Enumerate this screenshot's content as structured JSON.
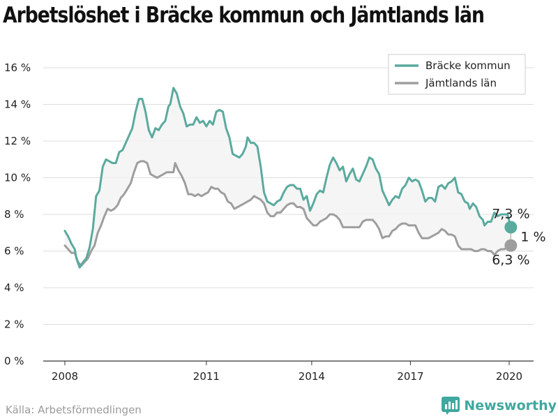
{
  "title": "Arbetslöshet i Bräcke kommun och Jämtlands län",
  "source": "Källa: Arbetsförmedlingen",
  "brand": {
    "name": "Newsworthy",
    "icon": "bar-chart-logo-icon",
    "color": "#3fa89f"
  },
  "chart_data": {
    "type": "line",
    "title": "Arbetslöshet i Bräcke kommun och Jämtlands län",
    "xlabel": "",
    "ylabel": "",
    "xlim": [
      2007.5,
      2020.75
    ],
    "ylim": [
      0,
      17
    ],
    "y_ticks": [
      0,
      2,
      4,
      6,
      8,
      10,
      12,
      14,
      16
    ],
    "y_tick_labels": [
      "0 %",
      "2 %",
      "4 %",
      "6 %",
      "8 %",
      "10 %",
      "12 %",
      "14 %",
      "16 %"
    ],
    "x_ticks": [
      2008,
      2011,
      2014,
      2017,
      2020
    ],
    "x_tick_labels": [
      "2008",
      "2011",
      "2014",
      "2017",
      "2020"
    ],
    "grid": "horizontal",
    "legend_position": "top-right",
    "series": [
      {
        "name": "Bräcke kommun",
        "color": "#5aaa9e",
        "points": [
          [
            2008.0,
            7.1
          ],
          [
            2008.1,
            6.8
          ],
          [
            2008.2,
            6.4
          ],
          [
            2008.3,
            6.1
          ],
          [
            2008.35,
            5.6
          ],
          [
            2008.45,
            5.1
          ],
          [
            2008.55,
            5.4
          ],
          [
            2008.65,
            5.6
          ],
          [
            2008.75,
            6.2
          ],
          [
            2008.85,
            7.2
          ],
          [
            2008.95,
            9.0
          ],
          [
            2009.05,
            9.3
          ],
          [
            2009.15,
            10.6
          ],
          [
            2009.25,
            11.0
          ],
          [
            2009.35,
            10.9
          ],
          [
            2009.45,
            10.8
          ],
          [
            2009.55,
            10.8
          ],
          [
            2009.65,
            11.4
          ],
          [
            2009.75,
            11.5
          ],
          [
            2009.85,
            11.9
          ],
          [
            2009.95,
            12.3
          ],
          [
            2010.05,
            12.7
          ],
          [
            2010.15,
            13.6
          ],
          [
            2010.25,
            14.3
          ],
          [
            2010.35,
            14.3
          ],
          [
            2010.45,
            13.6
          ],
          [
            2010.55,
            12.6
          ],
          [
            2010.65,
            12.2
          ],
          [
            2010.75,
            12.7
          ],
          [
            2010.85,
            12.6
          ],
          [
            2010.95,
            12.9
          ],
          [
            2011.05,
            13.1
          ],
          [
            2011.15,
            13.9
          ],
          [
            2011.2,
            14.0
          ],
          [
            2011.3,
            14.9
          ],
          [
            2011.4,
            14.6
          ],
          [
            2011.5,
            13.9
          ],
          [
            2011.6,
            13.5
          ],
          [
            2011.7,
            12.8
          ],
          [
            2011.8,
            12.9
          ],
          [
            2011.9,
            12.9
          ],
          [
            2012.0,
            13.3
          ],
          [
            2012.1,
            13.0
          ],
          [
            2012.2,
            13.1
          ],
          [
            2012.3,
            12.8
          ],
          [
            2012.4,
            13.1
          ],
          [
            2012.5,
            12.9
          ],
          [
            2012.6,
            13.6
          ],
          [
            2012.7,
            13.7
          ],
          [
            2012.8,
            13.6
          ],
          [
            2012.9,
            12.7
          ],
          [
            2013.0,
            12.2
          ],
          [
            2013.1,
            11.3
          ],
          [
            2013.2,
            11.2
          ],
          [
            2013.3,
            11.1
          ],
          [
            2013.4,
            11.3
          ],
          [
            2013.5,
            11.7
          ],
          [
            2013.55,
            12.2
          ],
          [
            2013.65,
            11.9
          ],
          [
            2013.75,
            11.9
          ],
          [
            2013.85,
            11.7
          ],
          [
            2013.95,
            10.6
          ],
          [
            2014.05,
            9.2
          ],
          [
            2014.15,
            8.7
          ],
          [
            2014.25,
            8.6
          ],
          [
            2014.35,
            8.5
          ],
          [
            2014.45,
            8.7
          ],
          [
            2014.55,
            8.8
          ],
          [
            2014.65,
            9.2
          ],
          [
            2014.75,
            9.5
          ],
          [
            2014.85,
            9.6
          ],
          [
            2014.95,
            9.6
          ],
          [
            2015.05,
            9.4
          ],
          [
            2015.15,
            9.4
          ],
          [
            2015.25,
            8.8
          ],
          [
            2015.35,
            9.0
          ],
          [
            2015.45,
            8.2
          ],
          [
            2015.55,
            8.6
          ],
          [
            2015.65,
            9.1
          ],
          [
            2015.75,
            9.3
          ],
          [
            2015.85,
            9.2
          ],
          [
            2015.95,
            10.0
          ],
          [
            2016.05,
            10.7
          ],
          [
            2016.15,
            11.1
          ],
          [
            2016.25,
            10.8
          ],
          [
            2016.35,
            10.4
          ],
          [
            2016.45,
            10.6
          ],
          [
            2016.55,
            9.8
          ],
          [
            2016.65,
            10.2
          ],
          [
            2016.75,
            10.5
          ],
          [
            2016.85,
            9.9
          ],
          [
            2016.95,
            9.8
          ],
          [
            2017.05,
            10.2
          ],
          [
            2017.15,
            10.6
          ],
          [
            2017.25,
            11.1
          ],
          [
            2017.35,
            11.0
          ],
          [
            2017.45,
            10.5
          ],
          [
            2017.55,
            10.2
          ],
          [
            2017.65,
            9.3
          ],
          [
            2017.75,
            8.9
          ],
          [
            2017.85,
            8.5
          ],
          [
            2017.95,
            8.8
          ],
          [
            2018.05,
            9.0
          ],
          [
            2018.15,
            8.9
          ],
          [
            2018.25,
            9.4
          ],
          [
            2018.35,
            9.6
          ],
          [
            2018.45,
            10.0
          ],
          [
            2018.55,
            9.8
          ],
          [
            2018.65,
            9.9
          ],
          [
            2018.75,
            9.8
          ],
          [
            2018.85,
            9.3
          ],
          [
            2018.95,
            8.7
          ],
          [
            2019.05,
            8.9
          ],
          [
            2019.15,
            8.9
          ],
          [
            2019.25,
            8.7
          ],
          [
            2019.35,
            9.5
          ],
          [
            2019.45,
            9.6
          ],
          [
            2019.55,
            9.4
          ],
          [
            2019.65,
            9.7
          ],
          [
            2019.75,
            9.8
          ],
          [
            2019.85,
            10.0
          ],
          [
            2019.95,
            9.2
          ],
          [
            2020.05,
            9.1
          ],
          [
            2020.15,
            8.7
          ],
          [
            2020.25,
            8.6
          ],
          [
            2020.3,
            8.3
          ],
          [
            2020.4,
            8.6
          ],
          [
            2020.45,
            8.5
          ],
          [
            2020.5,
            8.4
          ],
          [
            2020.6,
            7.9
          ],
          [
            2020.7,
            7.7
          ],
          [
            2020.75,
            7.4
          ],
          [
            2020.85,
            7.6
          ],
          [
            2020.95,
            7.6
          ],
          [
            2021.05,
            8.1
          ],
          [
            2021.15,
            7.9
          ],
          [
            2021.25,
            8.0
          ],
          [
            2021.35,
            8.0
          ],
          [
            2021.45,
            8.0
          ],
          [
            2021.55,
            7.3
          ]
        ]
      },
      {
        "name": "Jämtlands län",
        "color": "#9e9e9e",
        "points": [
          [
            2008.0,
            6.3
          ],
          [
            2008.1,
            6.1
          ],
          [
            2008.2,
            5.9
          ],
          [
            2008.3,
            5.9
          ],
          [
            2008.4,
            5.4
          ],
          [
            2008.5,
            5.2
          ],
          [
            2008.6,
            5.4
          ],
          [
            2008.7,
            5.6
          ],
          [
            2008.8,
            6.0
          ],
          [
            2008.9,
            6.3
          ],
          [
            2009.0,
            7.0
          ],
          [
            2009.1,
            7.4
          ],
          [
            2009.2,
            7.9
          ],
          [
            2009.3,
            8.3
          ],
          [
            2009.4,
            8.2
          ],
          [
            2009.5,
            8.3
          ],
          [
            2009.6,
            8.5
          ],
          [
            2009.7,
            8.9
          ],
          [
            2009.8,
            9.1
          ],
          [
            2009.9,
            9.4
          ],
          [
            2010.0,
            9.7
          ],
          [
            2010.1,
            10.3
          ],
          [
            2010.2,
            10.8
          ],
          [
            2010.3,
            10.9
          ],
          [
            2010.4,
            10.9
          ],
          [
            2010.5,
            10.8
          ],
          [
            2010.6,
            10.2
          ],
          [
            2010.7,
            10.1
          ],
          [
            2010.8,
            10.0
          ],
          [
            2010.9,
            10.1
          ],
          [
            2011.0,
            10.2
          ],
          [
            2011.1,
            10.3
          ],
          [
            2011.2,
            10.3
          ],
          [
            2011.3,
            10.3
          ],
          [
            2011.35,
            10.8
          ],
          [
            2011.45,
            10.4
          ],
          [
            2011.55,
            10.1
          ],
          [
            2011.65,
            9.7
          ],
          [
            2011.75,
            9.1
          ],
          [
            2011.85,
            9.1
          ],
          [
            2011.95,
            9.0
          ],
          [
            2012.05,
            9.1
          ],
          [
            2012.15,
            9.0
          ],
          [
            2012.25,
            9.1
          ],
          [
            2012.35,
            9.2
          ],
          [
            2012.45,
            9.5
          ],
          [
            2012.55,
            9.4
          ],
          [
            2012.65,
            9.4
          ],
          [
            2012.75,
            9.2
          ],
          [
            2012.85,
            9.1
          ],
          [
            2012.95,
            8.7
          ],
          [
            2013.05,
            8.6
          ],
          [
            2013.15,
            8.3
          ],
          [
            2013.25,
            8.4
          ],
          [
            2013.35,
            8.5
          ],
          [
            2013.45,
            8.6
          ],
          [
            2013.55,
            8.7
          ],
          [
            2013.65,
            8.8
          ],
          [
            2013.75,
            9.0
          ],
          [
            2013.85,
            8.9
          ],
          [
            2013.95,
            8.8
          ],
          [
            2014.05,
            8.6
          ],
          [
            2014.15,
            8.1
          ],
          [
            2014.25,
            7.9
          ],
          [
            2014.35,
            7.9
          ],
          [
            2014.45,
            8.1
          ],
          [
            2014.55,
            8.1
          ],
          [
            2014.65,
            8.3
          ],
          [
            2014.75,
            8.5
          ],
          [
            2014.85,
            8.6
          ],
          [
            2014.95,
            8.6
          ],
          [
            2015.05,
            8.4
          ],
          [
            2015.15,
            8.4
          ],
          [
            2015.25,
            8.3
          ],
          [
            2015.35,
            7.8
          ],
          [
            2015.45,
            7.6
          ],
          [
            2015.55,
            7.4
          ],
          [
            2015.65,
            7.4
          ],
          [
            2015.75,
            7.6
          ],
          [
            2015.85,
            7.7
          ],
          [
            2015.95,
            7.8
          ],
          [
            2016.05,
            8.0
          ],
          [
            2016.15,
            8.0
          ],
          [
            2016.25,
            7.9
          ],
          [
            2016.35,
            7.7
          ],
          [
            2016.45,
            7.3
          ],
          [
            2016.55,
            7.3
          ],
          [
            2016.65,
            7.3
          ],
          [
            2016.75,
            7.3
          ],
          [
            2016.85,
            7.3
          ],
          [
            2016.95,
            7.3
          ],
          [
            2017.05,
            7.6
          ],
          [
            2017.15,
            7.7
          ],
          [
            2017.25,
            7.7
          ],
          [
            2017.35,
            7.7
          ],
          [
            2017.45,
            7.5
          ],
          [
            2017.55,
            7.2
          ],
          [
            2017.65,
            6.7
          ],
          [
            2017.75,
            6.8
          ],
          [
            2017.85,
            6.8
          ],
          [
            2017.95,
            7.1
          ],
          [
            2018.05,
            7.2
          ],
          [
            2018.15,
            7.4
          ],
          [
            2018.25,
            7.5
          ],
          [
            2018.35,
            7.5
          ],
          [
            2018.45,
            7.4
          ],
          [
            2018.55,
            7.4
          ],
          [
            2018.65,
            7.4
          ],
          [
            2018.75,
            7.0
          ],
          [
            2018.85,
            6.7
          ],
          [
            2018.95,
            6.7
          ],
          [
            2019.05,
            6.7
          ],
          [
            2019.15,
            6.8
          ],
          [
            2019.25,
            6.9
          ],
          [
            2019.35,
            7.0
          ],
          [
            2019.45,
            7.2
          ],
          [
            2019.55,
            7.1
          ],
          [
            2019.65,
            6.9
          ],
          [
            2019.75,
            6.9
          ],
          [
            2019.85,
            6.8
          ],
          [
            2019.95,
            6.3
          ],
          [
            2020.05,
            6.1
          ],
          [
            2020.15,
            6.1
          ],
          [
            2020.25,
            6.1
          ],
          [
            2020.35,
            6.1
          ],
          [
            2020.45,
            6.0
          ],
          [
            2020.55,
            6.0
          ],
          [
            2020.65,
            6.1
          ],
          [
            2020.75,
            6.1
          ],
          [
            2020.85,
            6.0
          ],
          [
            2020.95,
            6.0
          ],
          [
            2021.05,
            5.8
          ],
          [
            2021.15,
            6.0
          ],
          [
            2021.25,
            6.1
          ],
          [
            2021.35,
            6.1
          ],
          [
            2021.45,
            6.2
          ],
          [
            2021.55,
            6.3
          ]
        ]
      }
    ],
    "annotations": {
      "end_value_a": "7,3 %",
      "end_value_b": "6,3 %",
      "difference": "1 %"
    }
  }
}
